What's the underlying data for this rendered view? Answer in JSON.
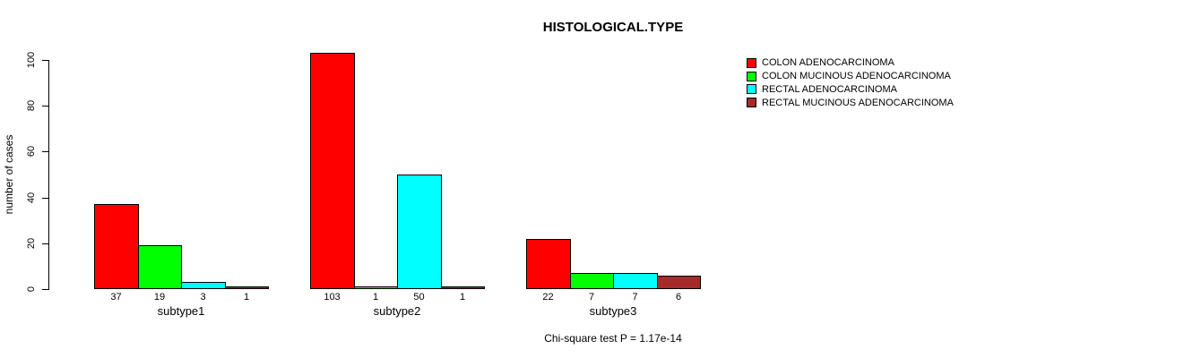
{
  "title": "HISTOLOGICAL.TYPE",
  "ylabel": "number of cases",
  "note": "Chi-square test P = 1.17e-14",
  "chart_data": {
    "type": "bar",
    "grouped": true,
    "title": "HISTOLOGICAL.TYPE",
    "xlabel": "",
    "ylabel": "number of cases",
    "categories": [
      "subtype1",
      "subtype2",
      "subtype3"
    ],
    "series": [
      {
        "name": "COLON ADENOCARCINOMA",
        "color": "#FF0000",
        "values": [
          37,
          103,
          22
        ]
      },
      {
        "name": "COLON MUCINOUS ADENOCARCINOMA",
        "color": "#00FF00",
        "values": [
          19,
          1,
          7
        ]
      },
      {
        "name": "RECTAL ADENOCARCINOMA",
        "color": "#00FFFF",
        "values": [
          3,
          50,
          7
        ]
      },
      {
        "name": "RECTAL MUCINOUS ADENOCARCINOMA",
        "color": "#A52A2A",
        "values": [
          1,
          1,
          6
        ]
      }
    ],
    "bar_value_labels": [
      [
        37,
        19,
        3,
        1
      ],
      [
        103,
        1,
        50,
        1
      ],
      [
        22,
        7,
        7,
        6
      ]
    ],
    "yticks": [
      0,
      20,
      40,
      60,
      80,
      100
    ],
    "ylim": [
      0,
      103
    ],
    "grid": false,
    "legend_position": "top-right",
    "annotation": "Chi-square test P = 1.17e-14",
    "bar_border_color": "#000000",
    "background_color": "#FFFFFF"
  }
}
